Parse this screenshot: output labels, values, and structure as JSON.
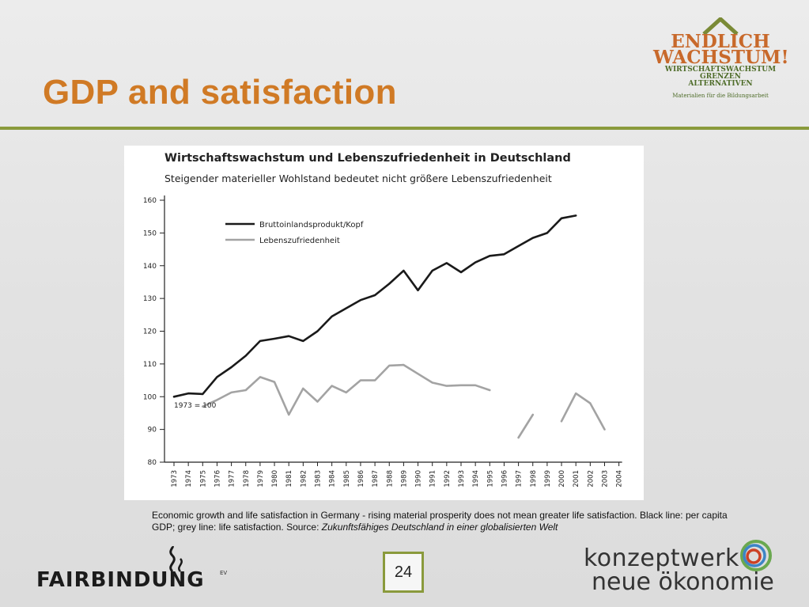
{
  "slide": {
    "title": "GDP and satisfaction",
    "page_number": "24",
    "caption_text": "Economic growth and life satisfaction in Germany - rising material prosperity does not mean greater life satisfaction. Black line: per capita GDP; grey line: life satisfaction. Source: ",
    "caption_source": "Zukunftsfähiges Deutschland in einer globalisierten Welt"
  },
  "logos": {
    "top_right": {
      "line1": "ENDLICH",
      "line2": "WACHSTUM!",
      "line3": "WIRTSCHAFTSWACHSTUM",
      "line4": "GRENZEN",
      "line5": "ALTERNATIVEN",
      "line6": "Materialien für die Bildungsarbeit"
    },
    "bottom_left": {
      "name": "FAIRBINDUNG",
      "suffix": "EV"
    },
    "bottom_right": {
      "line1": "konzeptwerk",
      "line2": "neue ökonomie"
    }
  },
  "colors": {
    "title": "#d07a25",
    "rule": "#8a9a3c",
    "gdp_line": "#1a1a1a",
    "satisfaction_line": "#a3a3a3"
  },
  "chart_data": {
    "type": "line",
    "title": "Wirtschaftswachstum und Lebenszufriedenheit in Deutschland",
    "subtitle": "Steigender materieller Wohlstand bedeutet nicht größere Lebenszufriedenheit",
    "ylim": [
      80,
      160
    ],
    "yticks": [
      80,
      90,
      100,
      110,
      120,
      130,
      140,
      150,
      160
    ],
    "x": [
      "1973",
      "1974",
      "1975",
      "1976",
      "1977",
      "1978",
      "1979",
      "1980",
      "1981",
      "1982",
      "1983",
      "1984",
      "1985",
      "1986",
      "1987",
      "1988",
      "1989",
      "1990",
      "1991",
      "1992",
      "1993",
      "1994",
      "1995",
      "1996",
      "1997",
      "1998",
      "1999",
      "2000",
      "2001",
      "2002",
      "2003",
      "2004"
    ],
    "annotation": "1973 = 100",
    "legend_position": "top-left",
    "series": [
      {
        "name": "Bruttoinlandsprodukt/Kopf",
        "values": [
          100,
          101,
          100.8,
          106,
          109,
          112.5,
          117,
          117.7,
          118.5,
          117,
          120,
          124.5,
          127,
          129.5,
          131,
          134.5,
          138.5,
          132.5,
          138.5,
          140.8,
          138,
          141,
          143,
          143.5,
          146,
          148.5,
          150,
          154.5,
          155.3,
          null,
          null,
          null
        ]
      },
      {
        "name": "Lebenszufriedenheit",
        "values": [
          null,
          null,
          97,
          99,
          101.3,
          102,
          106,
          104.5,
          94.5,
          102.5,
          98.5,
          103.3,
          101.3,
          105,
          105,
          109.5,
          109.7,
          107,
          104.3,
          103.3,
          103.5,
          103.5,
          102,
          null,
          87.5,
          94.5,
          null,
          92.5,
          101,
          98,
          90,
          null
        ]
      }
    ]
  }
}
